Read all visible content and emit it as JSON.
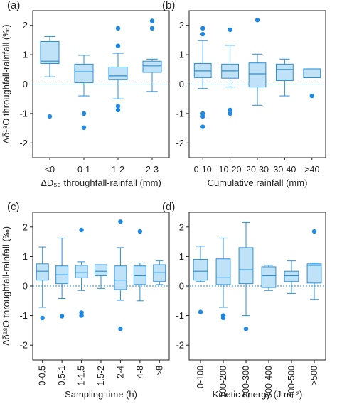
{
  "style": {
    "box_fill": "#bfe2f8",
    "box_stroke": "#2a8fd8",
    "outlier": "#1e88e5",
    "zero_line": "#2a8fd8",
    "axis": "#222222"
  },
  "shared_ylabel": "Δδ¹⁸O throughfall-rainfall (‰)",
  "chart_data": [
    {
      "type": "boxplot",
      "panel_label": "(a)",
      "title": "",
      "xlabel": "ΔD₅₀ throughfall-rainfall (mm)",
      "ylabel": "Δδ¹⁸O throughfall-rainfall (‰)",
      "ylim": [
        -2.5,
        2.5
      ],
      "yticks": [
        -2,
        -1,
        0,
        1,
        2
      ],
      "x_tick_rotation": 0,
      "zero_line": true,
      "categories": [
        "<0",
        "0-1",
        "1-2",
        "2-3"
      ],
      "boxes": [
        {
          "wlo": 0.25,
          "q1": 0.7,
          "med": 0.78,
          "q3": 1.45,
          "whi": 1.62,
          "outliers": [
            -1.1
          ]
        },
        {
          "wlo": -0.4,
          "q1": 0.05,
          "med": 0.42,
          "q3": 0.68,
          "whi": 0.98,
          "outliers": [
            -1.0,
            -1.48
          ]
        },
        {
          "wlo": -0.5,
          "q1": 0.15,
          "med": 0.28,
          "q3": 0.58,
          "whi": 1.05,
          "outliers": [
            1.9,
            1.3,
            -0.75,
            -0.88
          ]
        },
        {
          "wlo": -0.25,
          "q1": 0.4,
          "med": 0.62,
          "q3": 0.78,
          "whi": 0.85,
          "outliers": [
            2.15,
            1.9
          ]
        }
      ]
    },
    {
      "type": "boxplot",
      "panel_label": "(b)",
      "title": "",
      "xlabel": "Cumulative rainfall (mm)",
      "ylabel": "",
      "ylim": [
        -2.5,
        2.5
      ],
      "yticks": [
        -2,
        -1,
        0,
        1,
        2
      ],
      "x_tick_rotation": 0,
      "zero_line": true,
      "categories": [
        "0-10",
        "10-20",
        "20-30",
        "30-40",
        ">40"
      ],
      "boxes": [
        {
          "wlo": -0.15,
          "q1": 0.22,
          "med": 0.45,
          "q3": 0.7,
          "whi": 1.48,
          "outliers": [
            1.9,
            1.7,
            -1.0,
            -1.1,
            -1.45
          ]
        },
        {
          "wlo": -0.1,
          "q1": 0.2,
          "med": 0.45,
          "q3": 0.68,
          "whi": 1.32,
          "outliers": [
            1.85,
            -0.88,
            -1.0
          ]
        },
        {
          "wlo": -0.72,
          "q1": -0.1,
          "med": 0.35,
          "q3": 0.72,
          "whi": 1.02,
          "outliers": [
            2.18
          ]
        },
        {
          "wlo": -0.4,
          "q1": 0.12,
          "med": 0.5,
          "q3": 0.68,
          "whi": 0.85,
          "outliers": []
        },
        {
          "wlo": 0.22,
          "q1": 0.22,
          "med": 0.22,
          "q3": 0.52,
          "whi": 0.52,
          "outliers": [
            -0.4
          ]
        }
      ]
    },
    {
      "type": "boxplot",
      "panel_label": "(c)",
      "title": "",
      "xlabel": "Sampling time (h)",
      "ylabel": "Δδ¹⁸O throughfall-rainfall (‰)",
      "ylim": [
        -2.5,
        2.5
      ],
      "yticks": [
        -2,
        -1,
        0,
        1,
        2
      ],
      "x_tick_rotation": -90,
      "zero_line": true,
      "categories": [
        "0-0.5",
        "0.5-1",
        "1-1.5",
        "1.5-2",
        "2-4",
        "4-8",
        ">8"
      ],
      "boxes": [
        {
          "wlo": -0.72,
          "q1": 0.2,
          "med": 0.5,
          "q3": 0.75,
          "whi": 1.32,
          "outliers": [
            -1.08
          ]
        },
        {
          "wlo": -0.42,
          "q1": 0.08,
          "med": 0.38,
          "q3": 0.68,
          "whi": 1.62,
          "outliers": [
            -1.02
          ]
        },
        {
          "wlo": -0.15,
          "q1": 0.28,
          "med": 0.45,
          "q3": 0.7,
          "whi": 0.82,
          "outliers": [
            1.9,
            -0.9,
            -1.0
          ]
        },
        {
          "wlo": -0.08,
          "q1": 0.35,
          "med": 0.5,
          "q3": 0.72,
          "whi": 0.72,
          "outliers": []
        },
        {
          "wlo": -0.48,
          "q1": -0.12,
          "med": 0.2,
          "q3": 0.68,
          "whi": 1.3,
          "outliers": [
            2.18,
            -1.45
          ]
        },
        {
          "wlo": -0.5,
          "q1": 0.05,
          "med": 0.35,
          "q3": 0.68,
          "whi": 0.78,
          "outliers": [
            1.85
          ]
        },
        {
          "wlo": 0.05,
          "q1": 0.15,
          "med": 0.45,
          "q3": 0.72,
          "whi": 0.85,
          "outliers": []
        }
      ]
    },
    {
      "type": "boxplot",
      "panel_label": "(d)",
      "title": "",
      "xlabel": "Kinetic energy (J m⁻²)",
      "ylabel": "",
      "ylim": [
        -2.5,
        2.5
      ],
      "yticks": [
        -2,
        -1,
        0,
        1,
        2
      ],
      "x_tick_rotation": -90,
      "zero_line": true,
      "categories": [
        "0-100",
        "100-200",
        "200-300",
        "300-400",
        "400-500",
        ">500"
      ],
      "boxes": [
        {
          "wlo": 0.15,
          "q1": 0.2,
          "med": 0.5,
          "q3": 0.9,
          "whi": 1.35,
          "outliers": [
            -0.88
          ]
        },
        {
          "wlo": -0.72,
          "q1": 0.05,
          "med": 0.28,
          "q3": 0.92,
          "whi": 1.62,
          "outliers": [
            -1.0,
            -1.08
          ]
        },
        {
          "wlo": -1.0,
          "q1": 0.08,
          "med": 0.55,
          "q3": 1.3,
          "whi": 2.15,
          "outliers": [
            -1.45
          ]
        },
        {
          "wlo": -0.15,
          "q1": -0.05,
          "med": 0.35,
          "q3": 0.65,
          "whi": 0.7,
          "outliers": []
        },
        {
          "wlo": -0.25,
          "q1": 0.15,
          "med": 0.35,
          "q3": 0.5,
          "whi": 0.85,
          "outliers": []
        },
        {
          "wlo": -0.45,
          "q1": 0.1,
          "med": 0.7,
          "q3": 0.75,
          "whi": 0.78,
          "outliers": [
            1.85
          ]
        }
      ]
    }
  ]
}
